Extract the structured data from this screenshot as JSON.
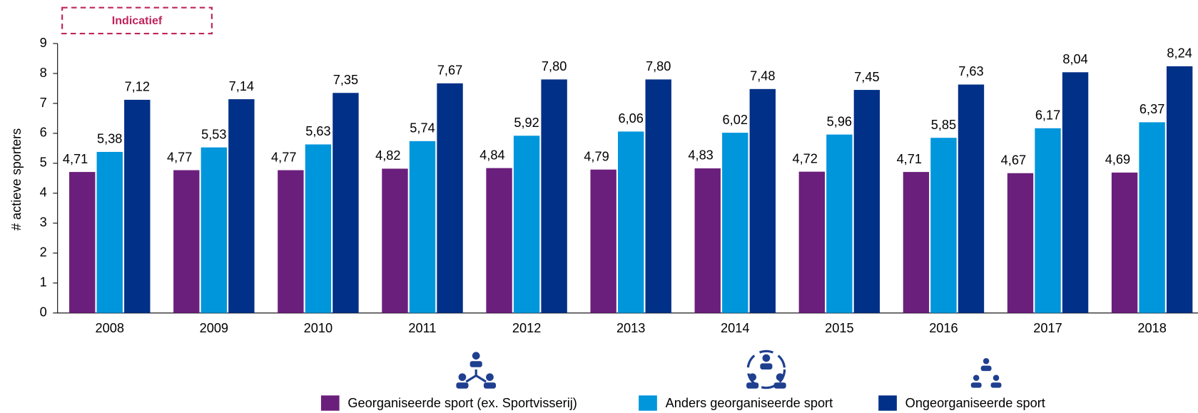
{
  "chart_data": {
    "type": "bar",
    "badge": "Indicatief",
    "y_label": "# actieve sporters",
    "categories": [
      "2008",
      "2009",
      "2010",
      "2011",
      "2012",
      "2013",
      "2014",
      "2015",
      "2016",
      "2017",
      "2018"
    ],
    "series": [
      {
        "name": "Georganiseerde sport (ex. Sportvisserij)",
        "color": "#6b1f7c",
        "values": [
          4.71,
          4.77,
          4.77,
          4.82,
          4.84,
          4.79,
          4.83,
          4.72,
          4.71,
          4.67,
          4.69
        ],
        "value_labels": [
          "4,71",
          "4,77",
          "4,77",
          "4,82",
          "4,84",
          "4,79",
          "4,83",
          "4,72",
          "4,71",
          "4,67",
          "4,69"
        ]
      },
      {
        "name": "Anders georganiseerde sport",
        "color": "#0096dc",
        "values": [
          5.38,
          5.53,
          5.63,
          5.74,
          5.92,
          6.06,
          6.02,
          5.96,
          5.85,
          6.17,
          6.37
        ],
        "value_labels": [
          "5,38",
          "5,53",
          "5,63",
          "5,74",
          "5,92",
          "6,06",
          "6,02",
          "5,96",
          "5,85",
          "6,17",
          "6,37"
        ]
      },
      {
        "name": "Ongeorganiseerde sport",
        "color": "#003087",
        "values": [
          7.12,
          7.14,
          7.35,
          7.67,
          7.8,
          7.8,
          7.48,
          7.45,
          7.63,
          8.04,
          8.24
        ],
        "value_labels": [
          "7,12",
          "7,14",
          "7,35",
          "7,67",
          "7,80",
          "7,80",
          "7,48",
          "7,45",
          "7,63",
          "8,04",
          "8,24"
        ]
      }
    ],
    "ylim": [
      0,
      9
    ],
    "yticks": [
      0,
      1,
      2,
      3,
      4,
      5,
      6,
      7,
      8,
      9
    ]
  }
}
